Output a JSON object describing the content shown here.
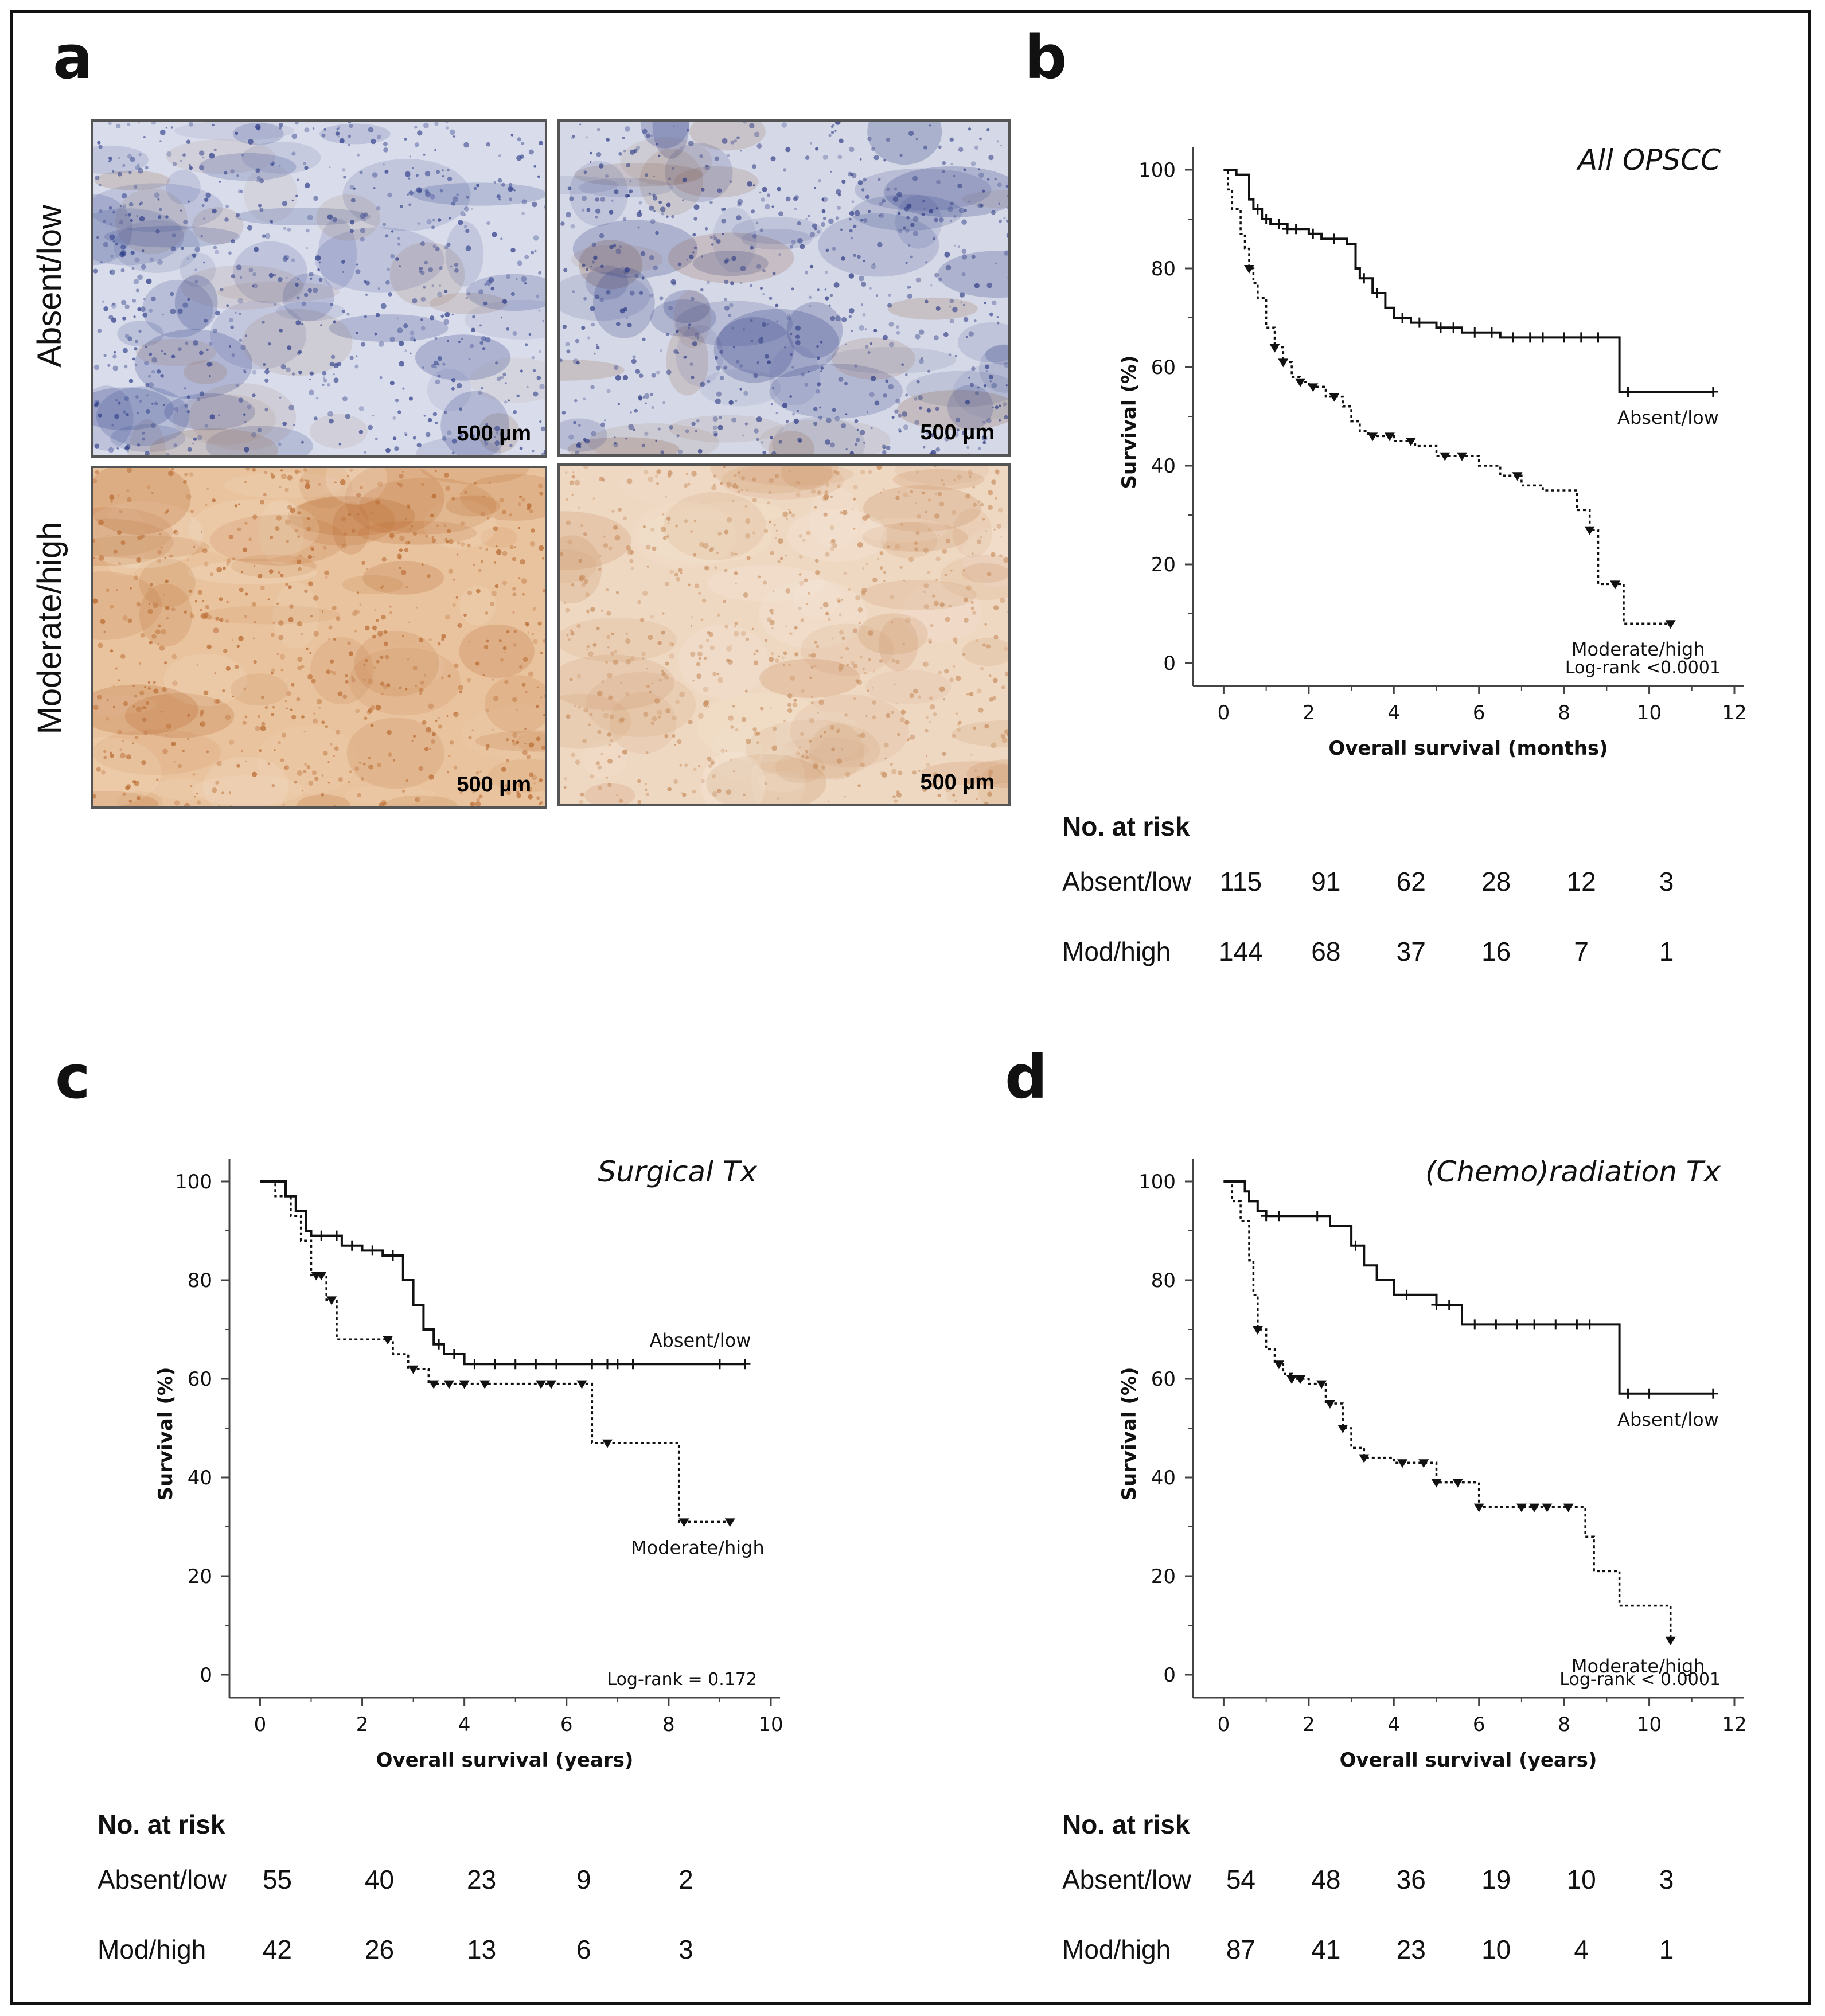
{
  "panels": {
    "a": {
      "label": "a",
      "row_labels": [
        "Absent/low",
        "Moderate/high"
      ],
      "scale_bar_text": "500 µm",
      "images": [
        {
          "name": "ihc-absent-low-1",
          "stain": "blue",
          "base": "#d9dcea",
          "dark": "#2f3f8a",
          "accent": "#9a7a6a"
        },
        {
          "name": "ihc-absent-low-2",
          "stain": "blue-brown",
          "base": "#d5d8e6",
          "dark": "#2c3a84",
          "accent": "#8a5a3a"
        },
        {
          "name": "ihc-moderate-high-1",
          "stain": "brown",
          "base": "#e9c39e",
          "dark": "#b8682e",
          "accent": "#f4e2cf"
        },
        {
          "name": "ihc-moderate-high-2",
          "stain": "brown-light",
          "base": "#efd8c2",
          "dark": "#c78d5e",
          "accent": "#f6ece2"
        }
      ]
    },
    "b": {
      "label": "b"
    },
    "c": {
      "label": "c"
    },
    "d": {
      "label": "d"
    }
  },
  "risk_header": "No. at risk",
  "chart_data": [
    {
      "panel": "b",
      "type": "line",
      "title": "All OPSCC",
      "xlabel": "Overall survival (months)",
      "ylabel": "Survival (%)",
      "xlim": [
        0,
        12
      ],
      "ylim": [
        0,
        100
      ],
      "xticks": [
        0,
        2,
        4,
        6,
        8,
        10,
        12
      ],
      "yticks": [
        0,
        20,
        40,
        60,
        80,
        100
      ],
      "annotation": "Log-rank <0.0001",
      "series": [
        {
          "name": "Absent/low",
          "style": "solid",
          "marker": "plus",
          "x": [
            0,
            0.3,
            0.6,
            0.7,
            0.9,
            1.1,
            1.5,
            2.0,
            2.3,
            2.9,
            3.1,
            3.2,
            3.5,
            3.8,
            4.0,
            4.4,
            5.0,
            5.6,
            6.5,
            8.5,
            9.3,
            11.5
          ],
          "y": [
            100,
            99,
            94,
            92,
            90,
            89,
            88,
            87,
            86,
            85,
            80,
            78,
            75,
            72,
            70,
            69,
            68,
            67,
            66,
            66,
            55,
            55
          ],
          "censored_x": [
            0.8,
            1.0,
            1.3,
            1.5,
            1.7,
            2.1,
            2.6,
            3.3,
            3.6,
            4.2,
            4.6,
            5.1,
            5.4,
            5.9,
            6.3,
            6.8,
            7.2,
            7.5,
            8.0,
            8.4,
            8.8,
            9.5,
            11.5
          ]
        },
        {
          "name": "Moderate/high",
          "style": "dotted",
          "marker": "triangle",
          "x": [
            0,
            0.1,
            0.2,
            0.4,
            0.5,
            0.6,
            0.7,
            0.8,
            1.0,
            1.2,
            1.4,
            1.6,
            1.8,
            2.0,
            2.4,
            2.8,
            3.0,
            3.2,
            3.4,
            4.0,
            4.5,
            5.0,
            6.0,
            6.5,
            7.0,
            7.5,
            7.8,
            8.3,
            8.6,
            8.8,
            9.2,
            9.4,
            10.5
          ],
          "y": [
            100,
            96,
            92,
            87,
            84,
            80,
            77,
            74,
            68,
            64,
            61,
            58,
            57,
            56,
            54,
            52,
            49,
            47,
            46,
            45,
            44,
            42,
            40,
            38,
            36,
            35,
            35,
            31,
            27,
            16,
            16,
            8,
            8
          ],
          "censored_x": [
            0.6,
            1.2,
            1.4,
            1.8,
            2.1,
            2.6,
            3.5,
            3.9,
            4.4,
            5.2,
            5.6,
            6.9,
            8.6,
            9.2,
            10.5
          ]
        }
      ],
      "series_labels": [
        "Absent/low",
        "Moderate/high"
      ],
      "risk_table": {
        "times": [
          0,
          2,
          4,
          6,
          8,
          10
        ],
        "rows": [
          {
            "label": "Absent/low",
            "values": [
              115,
              91,
              62,
              28,
              12,
              3
            ]
          },
          {
            "label": "Mod/high",
            "values": [
              144,
              68,
              37,
              16,
              7,
              1
            ]
          }
        ]
      }
    },
    {
      "panel": "c",
      "type": "line",
      "title": "Surgical Tx",
      "xlabel": "Overall survival (years)",
      "ylabel": "Survival (%)",
      "xlim": [
        0,
        10
      ],
      "ylim": [
        0,
        100
      ],
      "xticks": [
        0,
        2,
        4,
        6,
        8,
        10
      ],
      "yticks": [
        0,
        20,
        40,
        60,
        80,
        100
      ],
      "annotation": "Log-rank = 0.172",
      "series": [
        {
          "name": "Absent/low",
          "style": "solid",
          "marker": "plus",
          "x": [
            0,
            0.5,
            0.7,
            0.9,
            1.0,
            1.3,
            1.6,
            2.0,
            2.4,
            2.8,
            3.0,
            3.2,
            3.4,
            3.6,
            4.0,
            9.5
          ],
          "y": [
            100,
            97,
            94,
            90,
            89,
            89,
            87,
            86,
            85,
            80,
            75,
            70,
            67,
            65,
            63,
            63
          ],
          "censored_x": [
            1.2,
            1.5,
            1.8,
            2.2,
            2.6,
            3.5,
            3.8,
            4.2,
            4.6,
            5.0,
            5.4,
            5.8,
            6.5,
            6.8,
            7.0,
            7.3,
            9.0,
            9.5
          ]
        },
        {
          "name": "Moderate/high",
          "style": "dotted",
          "marker": "triangle",
          "x": [
            0,
            0.3,
            0.6,
            0.8,
            1.0,
            1.3,
            1.5,
            2.0,
            2.6,
            2.9,
            3.3,
            6.5,
            8.2,
            9.2
          ],
          "y": [
            100,
            97,
            93,
            88,
            81,
            76,
            68,
            68,
            65,
            62,
            59,
            47,
            31,
            31
          ],
          "censored_x": [
            1.1,
            1.2,
            1.4,
            2.5,
            3.0,
            3.4,
            3.7,
            4.0,
            4.4,
            5.5,
            5.7,
            6.3,
            6.8,
            8.3,
            9.2
          ]
        }
      ],
      "series_labels": [
        "Absent/low",
        "Moderate/high"
      ],
      "risk_table": {
        "times": [
          0,
          2,
          4,
          6,
          8
        ],
        "rows": [
          {
            "label": "Absent/low",
            "values": [
              55,
              40,
              23,
              9,
              2
            ]
          },
          {
            "label": "Mod/high",
            "values": [
              42,
              26,
              13,
              6,
              3
            ]
          }
        ]
      }
    },
    {
      "panel": "d",
      "type": "line",
      "title": "(Chemo)radiation Tx",
      "xlabel": "Overall survival (years)",
      "ylabel": "Survival (%)",
      "xlim": [
        0,
        12
      ],
      "ylim": [
        0,
        100
      ],
      "xticks": [
        0,
        2,
        4,
        6,
        8,
        10,
        12
      ],
      "yticks": [
        0,
        20,
        40,
        60,
        80,
        100
      ],
      "annotation": "Log-rank < 0.0001",
      "series": [
        {
          "name": "Absent/low",
          "style": "solid",
          "marker": "plus",
          "x": [
            0,
            0.5,
            0.6,
            0.8,
            1.0,
            1.4,
            2.5,
            3.0,
            3.3,
            3.6,
            4.0,
            5.0,
            5.6,
            9.3,
            11.5
          ],
          "y": [
            100,
            98,
            96,
            94,
            93,
            93,
            91,
            87,
            83,
            80,
            77,
            75,
            71,
            57,
            57
          ],
          "censored_x": [
            1.0,
            1.3,
            2.2,
            3.1,
            4.3,
            5.0,
            5.3,
            5.9,
            6.4,
            6.9,
            7.3,
            7.8,
            8.3,
            8.6,
            9.5,
            10.0,
            11.5
          ]
        },
        {
          "name": "Moderate/high",
          "style": "dotted",
          "marker": "triangle",
          "x": [
            0,
            0.2,
            0.4,
            0.6,
            0.7,
            0.8,
            1.0,
            1.2,
            1.4,
            1.6,
            2.0,
            2.4,
            2.8,
            3.0,
            3.3,
            4.0,
            5.0,
            6.0,
            7.5,
            8.5,
            8.7,
            9.3,
            10.5
          ],
          "y": [
            100,
            96,
            92,
            84,
            77,
            70,
            66,
            63,
            61,
            60,
            59,
            55,
            50,
            46,
            44,
            43,
            39,
            34,
            34,
            28,
            21,
            14,
            7
          ],
          "censored_x": [
            0.8,
            1.3,
            1.6,
            1.8,
            2.3,
            2.5,
            2.8,
            3.3,
            4.2,
            4.7,
            5.0,
            5.5,
            6.0,
            7.0,
            7.3,
            7.6,
            8.1,
            10.5
          ]
        }
      ],
      "series_labels": [
        "Absent/low",
        "Moderate/high"
      ],
      "risk_table": {
        "times": [
          0,
          2,
          4,
          6,
          8,
          10
        ],
        "rows": [
          {
            "label": "Absent/low",
            "values": [
              54,
              48,
              36,
              19,
              10,
              3
            ]
          },
          {
            "label": "Mod/high",
            "values": [
              87,
              41,
              23,
              10,
              4,
              1
            ]
          }
        ]
      }
    }
  ]
}
